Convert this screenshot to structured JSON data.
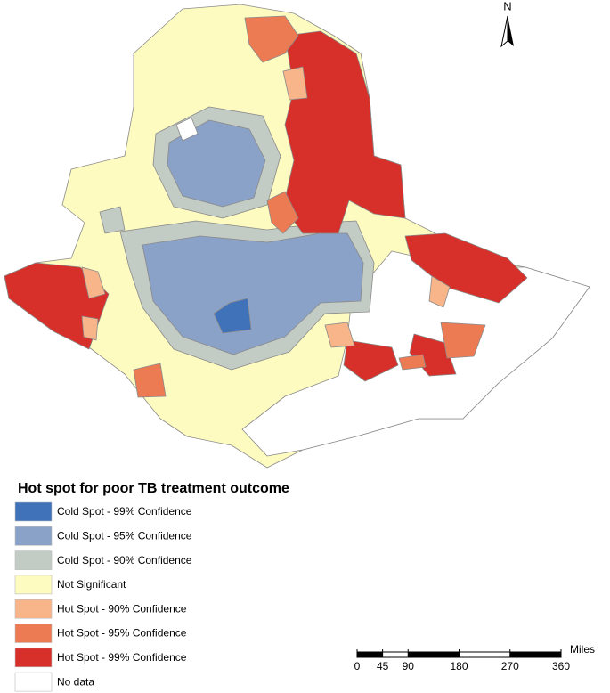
{
  "north_label": "N",
  "legend": {
    "title": "Hot spot for poor TB  treatment outcome",
    "items": [
      {
        "label": "Cold Spot - 99% Confidence",
        "color": "#3f72b8"
      },
      {
        "label": "Cold Spot - 95% Confidence",
        "color": "#8aa2c8"
      },
      {
        "label": "Cold Spot - 90% Confidence",
        "color": "#c2cbc4"
      },
      {
        "label": "Not Significant",
        "color": "#fdfbc0"
      },
      {
        "label": "Hot Spot - 90% Confidence",
        "color": "#f7b589"
      },
      {
        "label": "Hot Spot - 95% Confidence",
        "color": "#ec7b54"
      },
      {
        "label": "Hot Spot - 99% Confidence",
        "color": "#d7302a"
      },
      {
        "label": "No data",
        "color": "#ffffff"
      }
    ]
  },
  "scale_bar": {
    "unit": "Miles",
    "ticks": [
      0,
      45,
      90,
      180,
      270,
      360
    ]
  }
}
